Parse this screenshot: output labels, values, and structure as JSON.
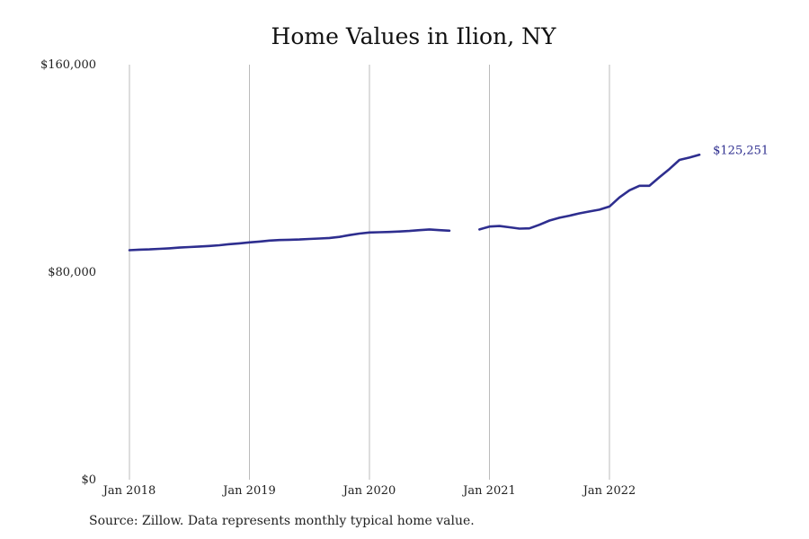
{
  "chart_data": {
    "type": "line",
    "title": "Home Values in Ilion, NY",
    "xlabel": "",
    "ylabel": "",
    "x_ticks": [
      "2018-01",
      "2019-01",
      "2020-01",
      "2021-01",
      "2022-01"
    ],
    "x_tick_labels": [
      "Jan 2018",
      "Jan 2019",
      "Jan 2020",
      "Jan 2021",
      "Jan 2022"
    ],
    "y_ticks": [
      0,
      80000,
      160000
    ],
    "y_tick_labels": [
      "$0",
      "$80,000",
      "$160,000"
    ],
    "ylim": [
      0,
      160000
    ],
    "grid": "vertical",
    "line_color": "#2e2e8f",
    "grid_color": "#bbbbbb",
    "end_label": "$125,251",
    "series": [
      {
        "name": "",
        "points": [
          {
            "x": "2018-01",
            "y": 88500
          },
          {
            "x": "2018-02",
            "y": 88700
          },
          {
            "x": "2018-03",
            "y": 88800
          },
          {
            "x": "2018-04",
            "y": 89000
          },
          {
            "x": "2018-05",
            "y": 89200
          },
          {
            "x": "2018-06",
            "y": 89500
          },
          {
            "x": "2018-07",
            "y": 89700
          },
          {
            "x": "2018-08",
            "y": 89900
          },
          {
            "x": "2018-09",
            "y": 90100
          },
          {
            "x": "2018-10",
            "y": 90400
          },
          {
            "x": "2018-11",
            "y": 90800
          },
          {
            "x": "2018-12",
            "y": 91100
          },
          {
            "x": "2019-01",
            "y": 91500
          },
          {
            "x": "2019-02",
            "y": 91800
          },
          {
            "x": "2019-03",
            "y": 92200
          },
          {
            "x": "2019-04",
            "y": 92400
          },
          {
            "x": "2019-05",
            "y": 92500
          },
          {
            "x": "2019-06",
            "y": 92600
          },
          {
            "x": "2019-07",
            "y": 92800
          },
          {
            "x": "2019-08",
            "y": 93000
          },
          {
            "x": "2019-09",
            "y": 93200
          },
          {
            "x": "2019-10",
            "y": 93600
          },
          {
            "x": "2019-11",
            "y": 94300
          },
          {
            "x": "2019-12",
            "y": 94900
          },
          {
            "x": "2020-01",
            "y": 95300
          },
          {
            "x": "2020-02",
            "y": 95400
          },
          {
            "x": "2020-03",
            "y": 95500
          },
          {
            "x": "2020-04",
            "y": 95700
          },
          {
            "x": "2020-05",
            "y": 95900
          },
          {
            "x": "2020-06",
            "y": 96200
          },
          {
            "x": "2020-07",
            "y": 96500
          },
          {
            "x": "2020-08",
            "y": 96200
          },
          {
            "x": "2020-09",
            "y": 96000
          },
          {
            "x": "2020-10",
            "y": null
          },
          {
            "x": "2020-11",
            "y": null
          },
          {
            "x": "2020-12",
            "y": 96500
          },
          {
            "x": "2021-01",
            "y": 97600
          },
          {
            "x": "2021-02",
            "y": 97800
          },
          {
            "x": "2021-03",
            "y": 97300
          },
          {
            "x": "2021-04",
            "y": 96800
          },
          {
            "x": "2021-05",
            "y": 96900
          },
          {
            "x": "2021-06",
            "y": 98300
          },
          {
            "x": "2021-07",
            "y": 99900
          },
          {
            "x": "2021-08",
            "y": 101000
          },
          {
            "x": "2021-09",
            "y": 101800
          },
          {
            "x": "2021-10",
            "y": 102700
          },
          {
            "x": "2021-11",
            "y": 103400
          },
          {
            "x": "2021-12",
            "y": 104100
          },
          {
            "x": "2022-01",
            "y": 105300
          },
          {
            "x": "2022-02",
            "y": 108800
          },
          {
            "x": "2022-03",
            "y": 111600
          },
          {
            "x": "2022-04",
            "y": 113300
          },
          {
            "x": "2022-05",
            "y": 113300
          },
          {
            "x": "2022-06",
            "y": 116600
          },
          {
            "x": "2022-07",
            "y": 119800
          },
          {
            "x": "2022-08",
            "y": 123300
          },
          {
            "x": "2022-09",
            "y": 124200
          },
          {
            "x": "2022-10",
            "y": 125251
          }
        ]
      }
    ]
  },
  "footer": {
    "source": "Source: Zillow. Data represents monthly typical home value."
  }
}
